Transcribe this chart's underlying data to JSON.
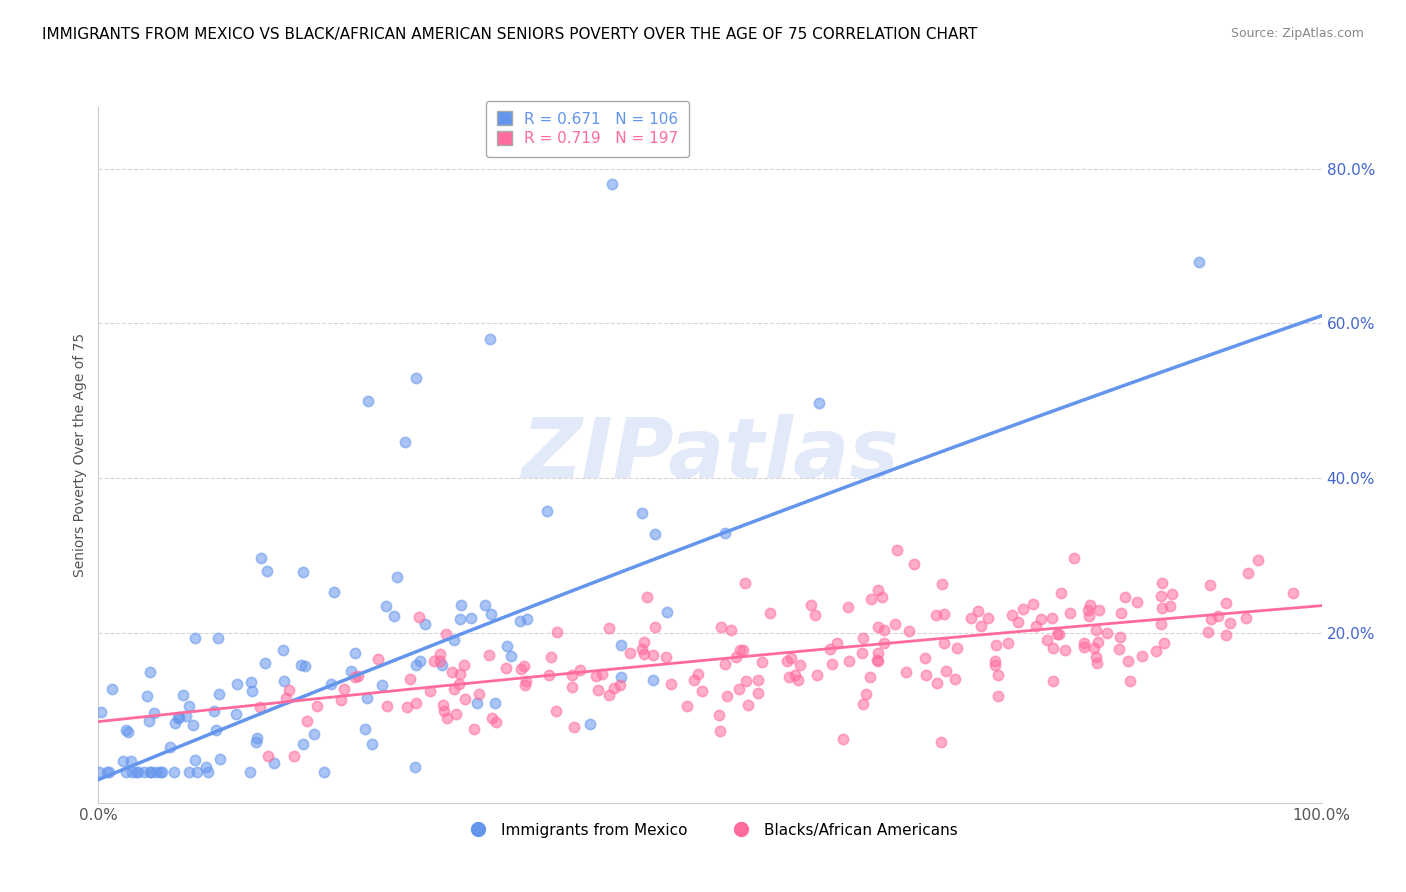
{
  "title": "IMMIGRANTS FROM MEXICO VS BLACK/AFRICAN AMERICAN SENIORS POVERTY OVER THE AGE OF 75 CORRELATION CHART",
  "source": "Source: ZipAtlas.com",
  "ylabel": "Seniors Poverty Over the Age of 75",
  "xlim": [
    0,
    1
  ],
  "ylim": [
    -0.02,
    0.88
  ],
  "xticks": [
    0.0,
    1.0
  ],
  "xticklabels": [
    "0.0%",
    "100.0%"
  ],
  "ytick_positions": [
    0.0,
    0.2,
    0.4,
    0.6,
    0.8
  ],
  "yticklabels": [
    "",
    "20.0%",
    "40.0%",
    "60.0%",
    "80.0%"
  ],
  "blue_R": 0.671,
  "blue_N": 106,
  "pink_R": 0.719,
  "pink_N": 197,
  "blue_color": "#6495ED",
  "pink_color": "#FF6B9D",
  "watermark_color": "#c8d8f0",
  "watermark_text": "ZIPatlas",
  "blue_line_start_x": 0.0,
  "blue_line_start_y": 0.01,
  "blue_line_end_x": 1.0,
  "blue_line_end_y": 0.61,
  "pink_line_start_x": 0.0,
  "pink_line_start_y": 0.085,
  "pink_line_end_x": 1.0,
  "pink_line_end_y": 0.235,
  "title_fontsize": 11,
  "source_fontsize": 9,
  "legend_label_blue": "Immigrants from Mexico",
  "legend_label_pink": "Blacks/African Americans",
  "grid_color": "#cccccc",
  "background_color": "#ffffff",
  "dot_size": 55,
  "dot_alpha": 0.55,
  "dot_linewidth": 1.2
}
